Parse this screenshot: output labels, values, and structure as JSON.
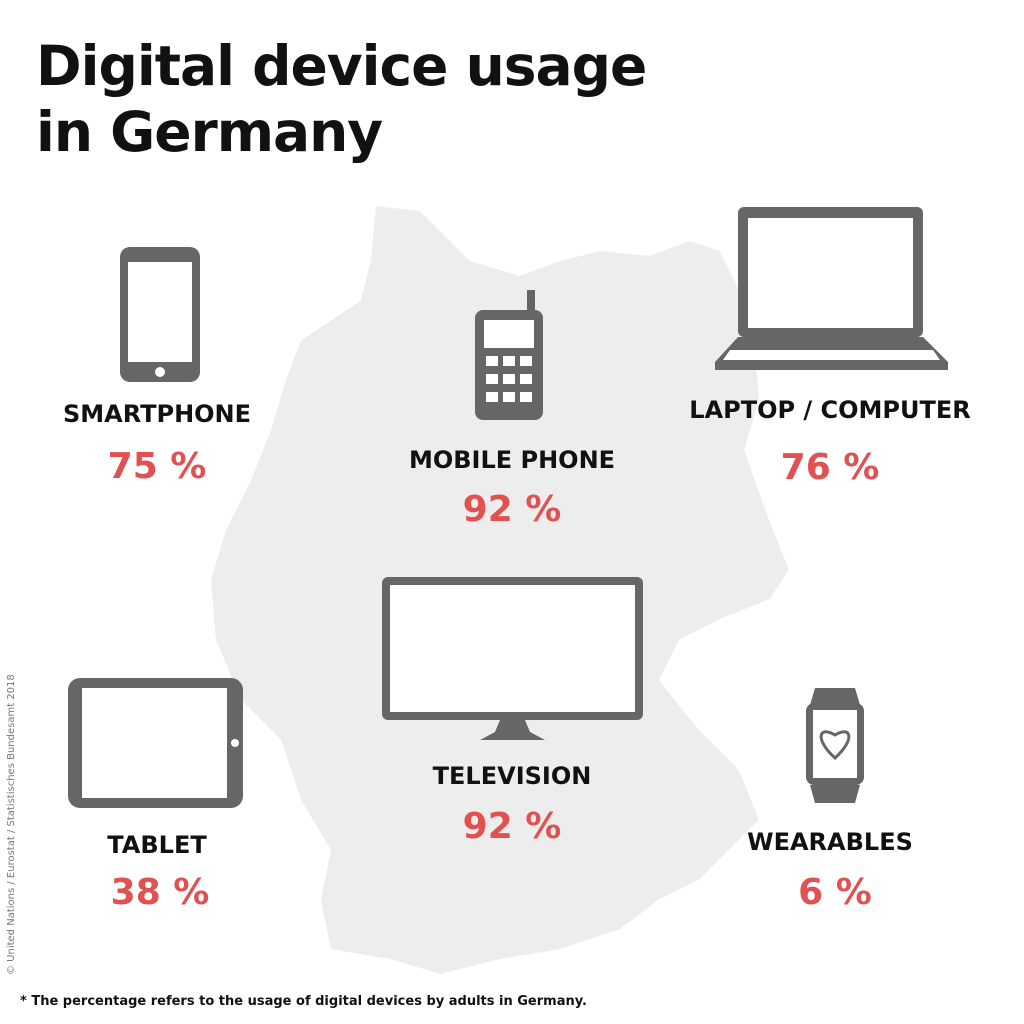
{
  "header": {
    "title_lines": [
      "Digital device usage",
      "in Germany"
    ]
  },
  "devices": [
    {
      "label": "SMARTPHONE",
      "value": "75 %"
    },
    {
      "label": "MOBILE PHONE",
      "value": "92 %"
    },
    {
      "label": "LAPTOP / COMPUTER",
      "value": "76 %"
    },
    {
      "label": "TABLET",
      "value": "38 %"
    },
    {
      "label": "TELEVISION",
      "value": "92 %"
    },
    {
      "label": "WEARABLES",
      "value": "6 %"
    }
  ],
  "footnote": "* The percentage refers to the  usage of digital devices by adults in Germany.",
  "credit": "© United Nations / Eurostat / Statistisches Bundesamt 2018"
}
